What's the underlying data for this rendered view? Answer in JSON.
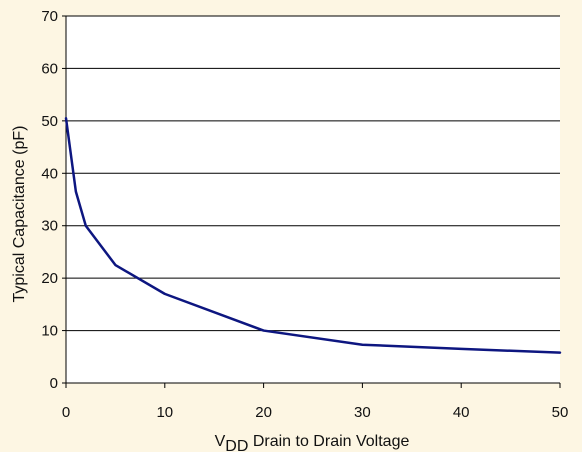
{
  "chart_data": {
    "type": "line",
    "title": "",
    "xlabel_main": "V",
    "xlabel_subscript": "DD",
    "xlabel_rest": " Drain to Drain Voltage",
    "ylabel": "Typical Capacitance (pF)",
    "xlim": [
      0,
      50
    ],
    "ylim": [
      0,
      70
    ],
    "xticks": [
      "0",
      "10",
      "20",
      "30",
      "40",
      "50"
    ],
    "yticks": [
      "0",
      "10",
      "20",
      "30",
      "40",
      "50",
      "60",
      "70"
    ],
    "grid": "horizontal",
    "background": "#fdf6e3",
    "plot_background": "#ffffff",
    "series": [
      {
        "color": "#0d1680",
        "x": [
          0,
          1,
          2,
          5,
          10,
          20,
          30,
          40,
          50
        ],
        "y": [
          50.5,
          36.5,
          30,
          22.5,
          17,
          10,
          7.3,
          6.5,
          5.8
        ]
      }
    ]
  }
}
